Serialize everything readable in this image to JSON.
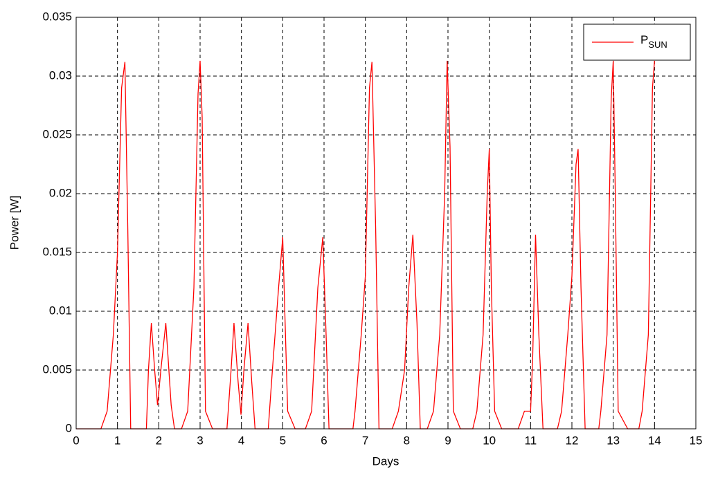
{
  "chart_data": {
    "type": "line",
    "xlabel": "Days",
    "ylabel": "Power [W]",
    "x": [
      0,
      0.6,
      0.75,
      0.9,
      1.0,
      1.1,
      1.18,
      1.25,
      1.32,
      1.7,
      1.75,
      1.82,
      1.9,
      1.97,
      2.05,
      2.17,
      2.3,
      2.38,
      2.55,
      2.7,
      2.85,
      2.95,
      3.0,
      3.05,
      3.13,
      3.3,
      3.6,
      3.65,
      3.75,
      3.82,
      3.92,
      3.99,
      4.06,
      4.16,
      4.25,
      4.33,
      4.6,
      4.65,
      4.75,
      4.9,
      5.0,
      5.05,
      5.12,
      5.3,
      5.55,
      5.7,
      5.85,
      5.97,
      6.05,
      6.12,
      6.7,
      6.75,
      6.9,
      7.0,
      7.1,
      7.16,
      7.25,
      7.33,
      7.65,
      7.8,
      7.95,
      8.05,
      8.15,
      8.25,
      8.33,
      8.5,
      8.65,
      8.8,
      8.92,
      8.98,
      9.05,
      9.13,
      9.3,
      9.6,
      9.7,
      9.85,
      9.95,
      10.0,
      10.05,
      10.13,
      10.3,
      10.7,
      10.85,
      11.0,
      11.05,
      11.12,
      11.2,
      11.3,
      11.65,
      11.75,
      11.9,
      12.0,
      12.1,
      12.15,
      12.22,
      12.32,
      12.65,
      12.7,
      12.85,
      12.95,
      13.0,
      13.05,
      13.12,
      13.35,
      13.62,
      13.7,
      13.85,
      13.95,
      14.0
    ],
    "series": [
      {
        "name": "P",
        "name_subscript": "SUN",
        "color": "#ff0000",
        "values": [
          0,
          0,
          0.0015,
          0.008,
          0.015,
          0.029,
          0.0312,
          0.017,
          0,
          0,
          0.005,
          0.009,
          0.005,
          0.002,
          0.005,
          0.009,
          0.002,
          0,
          0,
          0.0015,
          0.012,
          0.0285,
          0.0313,
          0.0265,
          0.0015,
          0,
          0,
          0,
          0.005,
          0.009,
          0.004,
          0.0012,
          0.005,
          0.009,
          0.004,
          0,
          0,
          0,
          0.005,
          0.012,
          0.0163,
          0.01,
          0.0015,
          0,
          0,
          0.0015,
          0.012,
          0.0163,
          0.008,
          0,
          0,
          0.0015,
          0.008,
          0.013,
          0.029,
          0.0312,
          0.017,
          0,
          0,
          0.0015,
          0.005,
          0.012,
          0.0165,
          0.009,
          0,
          0,
          0.0015,
          0.008,
          0.02,
          0.0313,
          0.024,
          0.0015,
          0,
          0,
          0.0015,
          0.008,
          0.02,
          0.0238,
          0.012,
          0.0015,
          0,
          0,
          0.0015,
          0.0015,
          0.006,
          0.0165,
          0.008,
          0,
          0,
          0.0015,
          0.008,
          0.013,
          0.0225,
          0.0238,
          0.012,
          0,
          0,
          0.0015,
          0.008,
          0.028,
          0.0313,
          0.02,
          0.0015,
          0,
          0,
          0.0015,
          0.008,
          0.029,
          0.0313
        ]
      }
    ],
    "xlim": [
      0,
      15
    ],
    "xticks": [
      0,
      1,
      2,
      3,
      4,
      5,
      6,
      7,
      8,
      9,
      10,
      11,
      12,
      13,
      14,
      15
    ],
    "ylim": [
      0,
      0.035
    ],
    "yticks": [
      0,
      0.005,
      0.01,
      0.015,
      0.02,
      0.025,
      0.03,
      0.035
    ],
    "grid": true,
    "legend": "upper right"
  }
}
